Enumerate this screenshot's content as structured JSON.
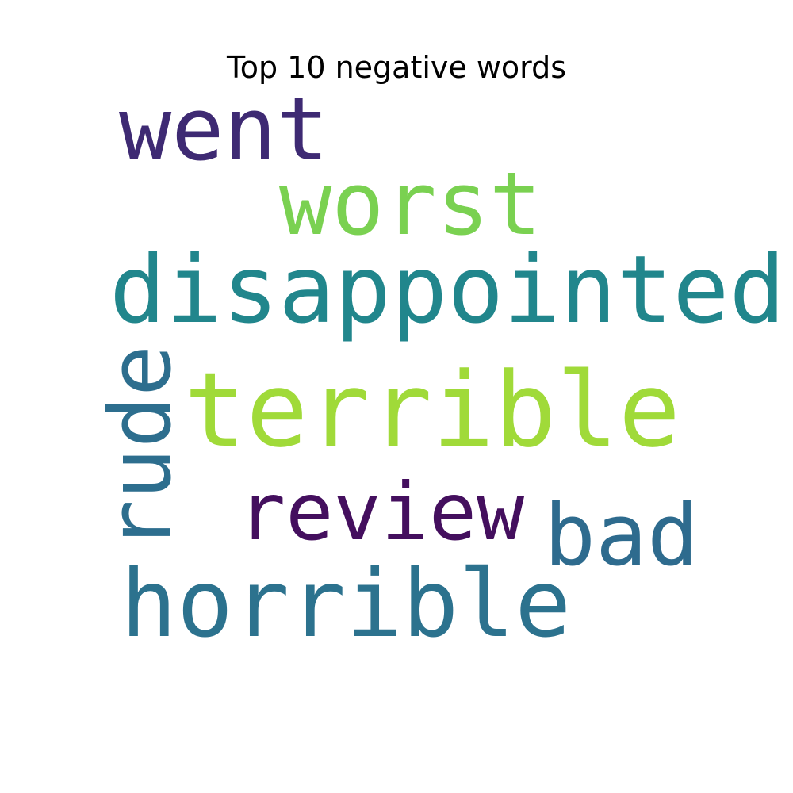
{
  "title": "Top 10 negative words",
  "words": {
    "went": {
      "text": "went",
      "color": "#3e2a73"
    },
    "worst": {
      "text": "worst",
      "color": "#7ad151"
    },
    "disappointed": {
      "text": "disappointed",
      "color": "#21868c"
    },
    "terrible": {
      "text": "terrible",
      "color": "#a0da39"
    },
    "rude": {
      "text": "rude",
      "color": "#2d6e8e"
    },
    "review": {
      "text": "review",
      "color": "#440f5e"
    },
    "bad": {
      "text": "bad",
      "color": "#2e6b8e"
    },
    "horrible": {
      "text": "horrible",
      "color": "#2c728e"
    }
  }
}
